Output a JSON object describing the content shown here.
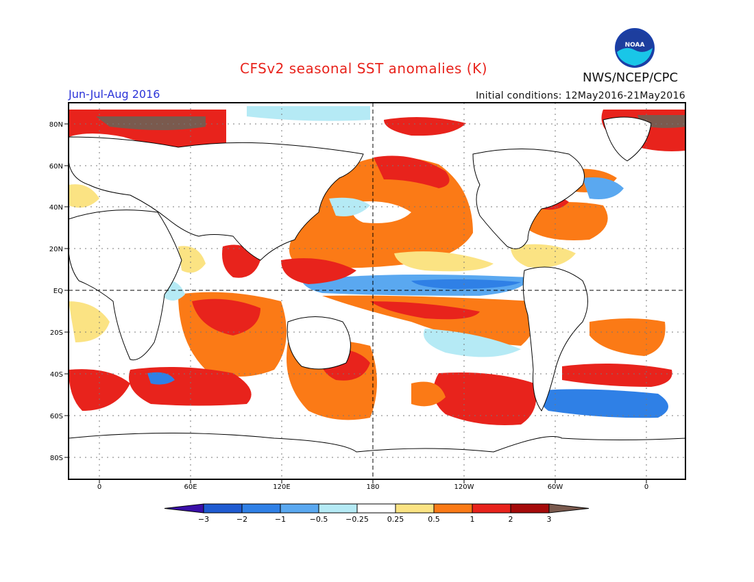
{
  "header": {
    "title": "CFSv2 seasonal SST anomalies (K)",
    "agency": "NWS/NCEP/CPC",
    "logo_text": "NOAA",
    "period": "Jun-Jul-Aug 2016",
    "initial_conditions": "Initial conditions: 12May2016-21May2016"
  },
  "map": {
    "lat_labels": [
      "80N",
      "60N",
      "40N",
      "20N",
      "EQ",
      "20S",
      "40S",
      "60S",
      "80S"
    ],
    "lon_labels": [
      "0",
      "60E",
      "120E",
      "180",
      "120W",
      "60W",
      "0"
    ]
  },
  "colorbar": {
    "tick_labels": [
      "-3",
      "-2",
      "-1",
      "-0.5",
      "-0.25",
      "0.25",
      "0.5",
      "1",
      "2",
      "3"
    ],
    "colors": [
      "#3a0fa8",
      "#1f5bd1",
      "#2f80e6",
      "#5aa8f0",
      "#b5eaf5",
      "#ffffff",
      "#fbe383",
      "#fb7a16",
      "#e8231c",
      "#a50a0a",
      "#7a5a4e"
    ]
  }
}
